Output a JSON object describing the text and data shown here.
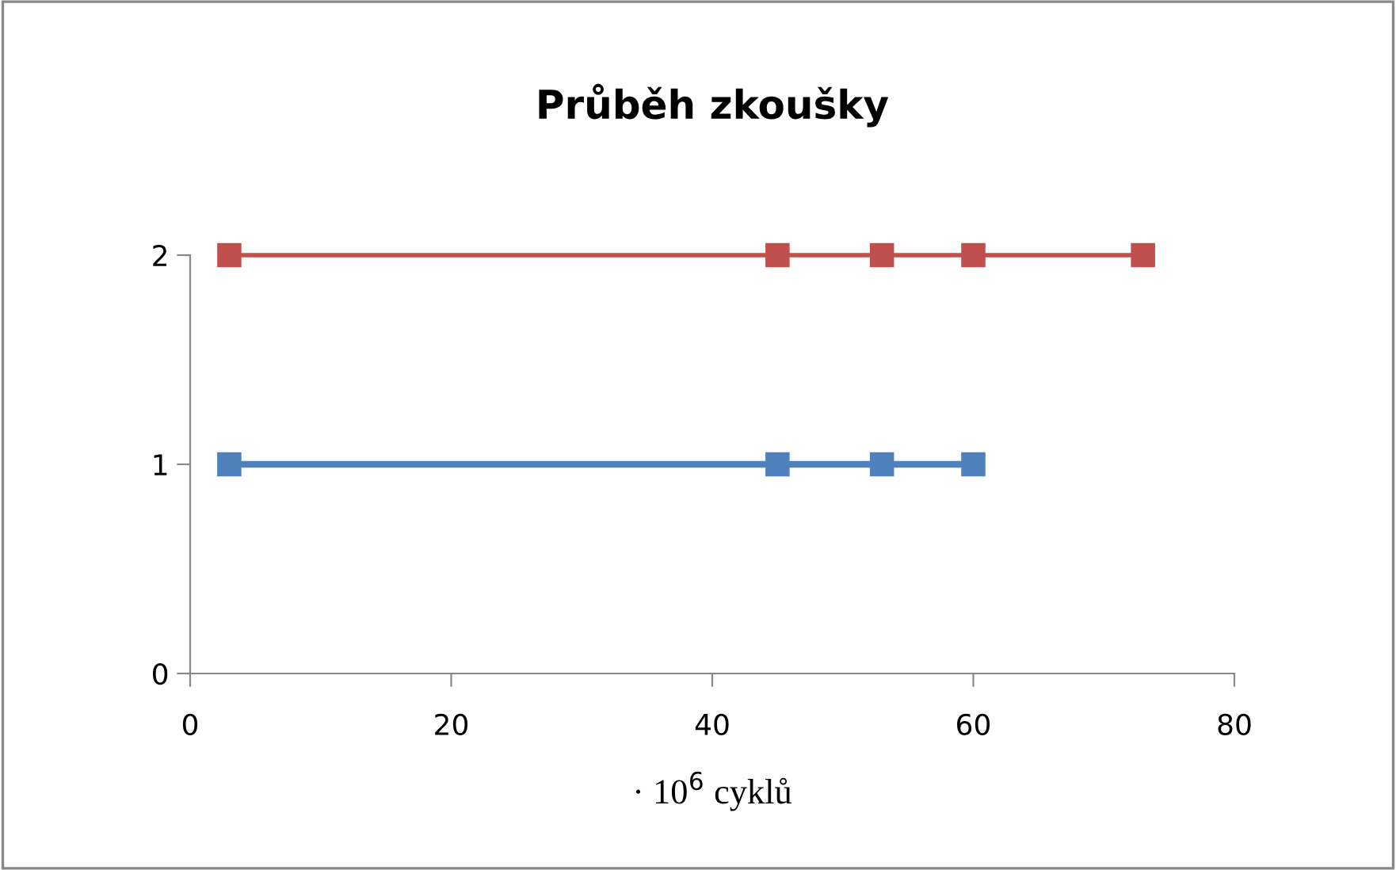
{
  "chart_data": {
    "type": "line",
    "title": "Průběh zkoušky",
    "xlabel": "· 10$^{6}$ cyklů",
    "marker": "square",
    "line_style": "solid",
    "grid": false,
    "legend": false,
    "xlim": [
      0,
      80
    ],
    "xticks": [
      0,
      20,
      40,
      60,
      80
    ],
    "ylim": [
      0,
      2
    ],
    "yticks": [
      0,
      1,
      2
    ],
    "series": [
      {
        "color": "#4f81bd",
        "x": [
          3,
          45,
          53,
          60
        ],
        "values": [
          1,
          1,
          1,
          1
        ]
      },
      {
        "color": "#c0504d",
        "x": [
          3,
          45,
          53,
          60,
          73
        ],
        "values": [
          2,
          2,
          2,
          2,
          2
        ]
      }
    ]
  }
}
